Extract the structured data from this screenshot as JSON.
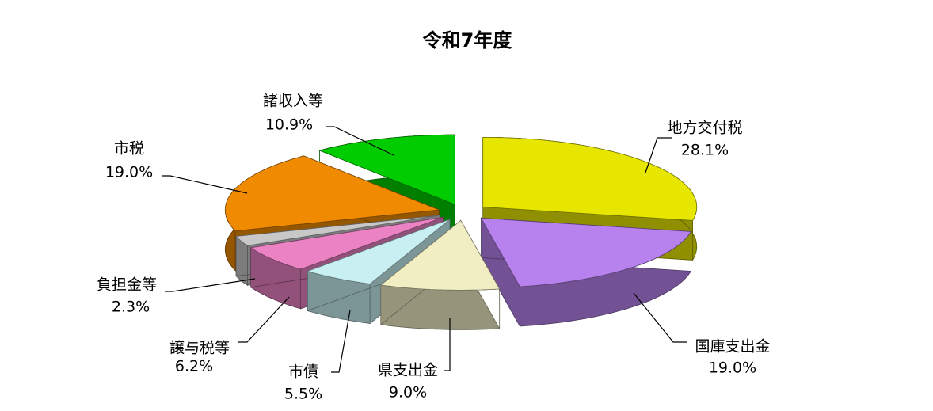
{
  "chart_data": {
    "type": "pie",
    "title": "令和7年度",
    "categories": [
      "地方交付税",
      "国庫支出金",
      "県支出金",
      "市債",
      "譲与税等",
      "負担金等",
      "市税",
      "諸収入等"
    ],
    "values": [
      28.1,
      19.0,
      9.0,
      5.5,
      6.2,
      2.3,
      19.0,
      10.9
    ],
    "value_labels": [
      "28.1%",
      "19.0%",
      "9.0%",
      "5.5%",
      "6.2%",
      "2.3%",
      "19.0%",
      "10.9%"
    ],
    "colors": [
      "#e6e600",
      "#b882ee",
      "#f2eec4",
      "#c8f0f2",
      "#ea82c4",
      "#c8c8c8",
      "#f08a00",
      "#00cc00"
    ]
  }
}
